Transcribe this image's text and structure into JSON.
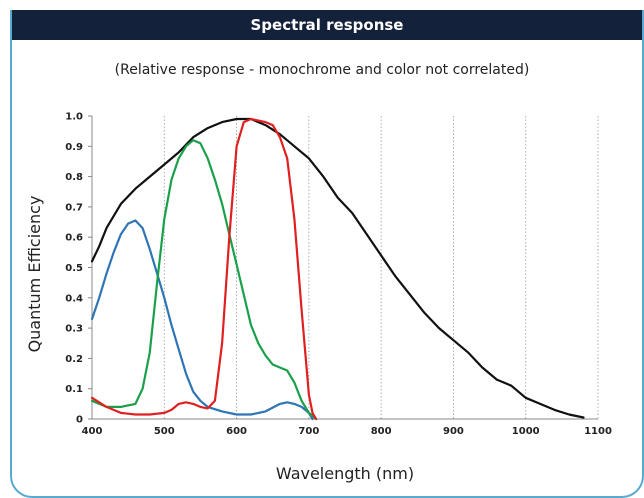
{
  "panel": {
    "header": "Spectral response",
    "subtitle": "(Relative response - monochrome and color not correlated)"
  },
  "chart_data": {
    "type": "line",
    "xlabel": "Wavelength (nm)",
    "ylabel": "Quantum Efficiency",
    "xlim": [
      400,
      1100
    ],
    "ylim": [
      0,
      1.0
    ],
    "x_ticks": [
      "400",
      "500",
      "600",
      "700",
      "800",
      "900",
      "1000",
      "1100"
    ],
    "y_ticks": [
      "0",
      "0.1",
      "0.2",
      "0.3",
      "0.4",
      "0.5",
      "0.6",
      "0.7",
      "0.8",
      "0.9",
      "1.0"
    ],
    "grid": "vertical dotted",
    "series": [
      {
        "color": "#111111",
        "points": [
          [
            400,
            0.52
          ],
          [
            410,
            0.57
          ],
          [
            420,
            0.63
          ],
          [
            440,
            0.71
          ],
          [
            460,
            0.76
          ],
          [
            480,
            0.8
          ],
          [
            500,
            0.84
          ],
          [
            520,
            0.88
          ],
          [
            540,
            0.93
          ],
          [
            560,
            0.96
          ],
          [
            580,
            0.98
          ],
          [
            600,
            0.99
          ],
          [
            620,
            0.99
          ],
          [
            640,
            0.97
          ],
          [
            660,
            0.94
          ],
          [
            680,
            0.9
          ],
          [
            700,
            0.86
          ],
          [
            720,
            0.8
          ],
          [
            740,
            0.73
          ],
          [
            760,
            0.68
          ],
          [
            780,
            0.61
          ],
          [
            800,
            0.54
          ],
          [
            820,
            0.47
          ],
          [
            840,
            0.41
          ],
          [
            860,
            0.35
          ],
          [
            880,
            0.3
          ],
          [
            900,
            0.26
          ],
          [
            920,
            0.22
          ],
          [
            940,
            0.17
          ],
          [
            960,
            0.13
          ],
          [
            980,
            0.11
          ],
          [
            1000,
            0.07
          ],
          [
            1020,
            0.05
          ],
          [
            1040,
            0.03
          ],
          [
            1060,
            0.015
          ],
          [
            1080,
            0.005
          ]
        ]
      },
      {
        "color": "#2e75b6",
        "points": [
          [
            400,
            0.33
          ],
          [
            410,
            0.4
          ],
          [
            420,
            0.48
          ],
          [
            430,
            0.55
          ],
          [
            440,
            0.61
          ],
          [
            450,
            0.645
          ],
          [
            460,
            0.655
          ],
          [
            470,
            0.63
          ],
          [
            480,
            0.56
          ],
          [
            490,
            0.48
          ],
          [
            500,
            0.4
          ],
          [
            510,
            0.31
          ],
          [
            520,
            0.23
          ],
          [
            530,
            0.15
          ],
          [
            540,
            0.09
          ],
          [
            550,
            0.06
          ],
          [
            560,
            0.04
          ],
          [
            580,
            0.025
          ],
          [
            600,
            0.015
          ],
          [
            620,
            0.015
          ],
          [
            640,
            0.025
          ],
          [
            660,
            0.05
          ],
          [
            670,
            0.055
          ],
          [
            680,
            0.05
          ],
          [
            690,
            0.04
          ],
          [
            700,
            0.02
          ],
          [
            705,
            0.0
          ]
        ]
      },
      {
        "color": "#1aa04a",
        "points": [
          [
            400,
            0.06
          ],
          [
            420,
            0.04
          ],
          [
            440,
            0.04
          ],
          [
            460,
            0.05
          ],
          [
            470,
            0.1
          ],
          [
            480,
            0.22
          ],
          [
            490,
            0.45
          ],
          [
            500,
            0.66
          ],
          [
            510,
            0.79
          ],
          [
            520,
            0.86
          ],
          [
            530,
            0.9
          ],
          [
            540,
            0.92
          ],
          [
            550,
            0.91
          ],
          [
            560,
            0.86
          ],
          [
            570,
            0.79
          ],
          [
            580,
            0.71
          ],
          [
            590,
            0.61
          ],
          [
            600,
            0.51
          ],
          [
            610,
            0.41
          ],
          [
            620,
            0.31
          ],
          [
            630,
            0.25
          ],
          [
            640,
            0.21
          ],
          [
            650,
            0.18
          ],
          [
            660,
            0.17
          ],
          [
            670,
            0.16
          ],
          [
            680,
            0.12
          ],
          [
            690,
            0.06
          ],
          [
            700,
            0.02
          ],
          [
            710,
            0.0
          ]
        ]
      },
      {
        "color": "#e02020",
        "points": [
          [
            400,
            0.07
          ],
          [
            420,
            0.04
          ],
          [
            440,
            0.02
          ],
          [
            460,
            0.015
          ],
          [
            480,
            0.015
          ],
          [
            500,
            0.02
          ],
          [
            510,
            0.03
          ],
          [
            520,
            0.05
          ],
          [
            530,
            0.055
          ],
          [
            540,
            0.05
          ],
          [
            550,
            0.04
          ],
          [
            560,
            0.035
          ],
          [
            570,
            0.06
          ],
          [
            580,
            0.25
          ],
          [
            590,
            0.6
          ],
          [
            600,
            0.9
          ],
          [
            610,
            0.98
          ],
          [
            620,
            0.99
          ],
          [
            640,
            0.98
          ],
          [
            650,
            0.97
          ],
          [
            660,
            0.93
          ],
          [
            670,
            0.86
          ],
          [
            680,
            0.66
          ],
          [
            690,
            0.36
          ],
          [
            700,
            0.08
          ],
          [
            705,
            0.02
          ],
          [
            710,
            0.0
          ]
        ]
      }
    ]
  }
}
